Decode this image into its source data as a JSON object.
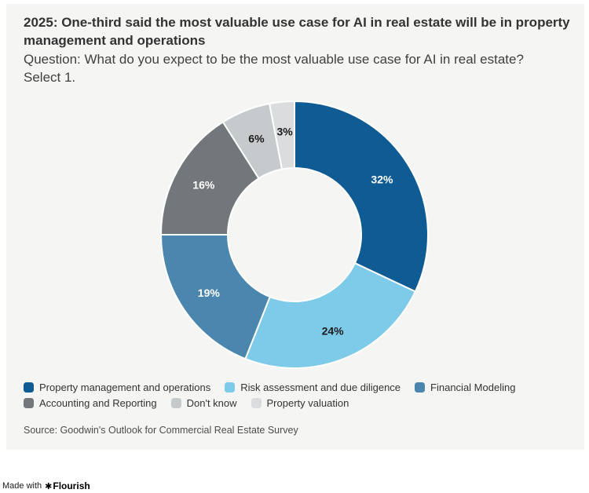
{
  "page": {
    "background": "#ffffff",
    "card_background": "#f5f5f3"
  },
  "header": {
    "title": "2025: One-third said the most valuable use case for AI in real estate will be in property management and operations",
    "subtitle": "Question: What do you expect to be the most valuable use case for AI in real estate? Select 1."
  },
  "chart_data": {
    "type": "pie",
    "subtype": "donut",
    "title": "2025: One-third said the most valuable use case for AI in real estate will be in property management and operations",
    "categories": [
      "Property management and operations",
      "Risk assessment and due diligence",
      "Financial Modeling",
      "Accounting and Reporting",
      "Don't know",
      "Property valuation"
    ],
    "values": [
      32,
      24,
      19,
      16,
      6,
      3
    ],
    "value_labels": [
      "32%",
      "24%",
      "19%",
      "16%",
      "6%",
      "3%"
    ],
    "colors": [
      "#0f5b94",
      "#7ecae9",
      "#4a86ae",
      "#72777b",
      "#c7cacc",
      "#dbdcde"
    ],
    "label_text_colors": [
      "#ffffff",
      "#1a1a1a",
      "#ffffff",
      "#ffffff",
      "#1a1a1a",
      "#1a1a1a"
    ],
    "start_angle_deg": 0,
    "direction": "clockwise",
    "inner_radius_ratio": 0.5,
    "separator_color": "#ffffff",
    "legend_position": "bottom-left"
  },
  "legend": {
    "items": [
      {
        "label": "Property management and operations",
        "color": "#0f5b94"
      },
      {
        "label": "Risk assessment and due diligence",
        "color": "#7ecae9"
      },
      {
        "label": "Financial Modeling",
        "color": "#4a86ae"
      },
      {
        "label": "Accounting and Reporting",
        "color": "#72777b"
      },
      {
        "label": "Don't know",
        "color": "#c7cacc"
      },
      {
        "label": "Property valuation",
        "color": "#dbdcde"
      }
    ]
  },
  "source": {
    "text": "Source: Goodwin's Outlook for Commercial Real Estate Survey"
  },
  "footer": {
    "made_with": "Made with",
    "flower_icon": "✱",
    "brand": "Flourish"
  }
}
